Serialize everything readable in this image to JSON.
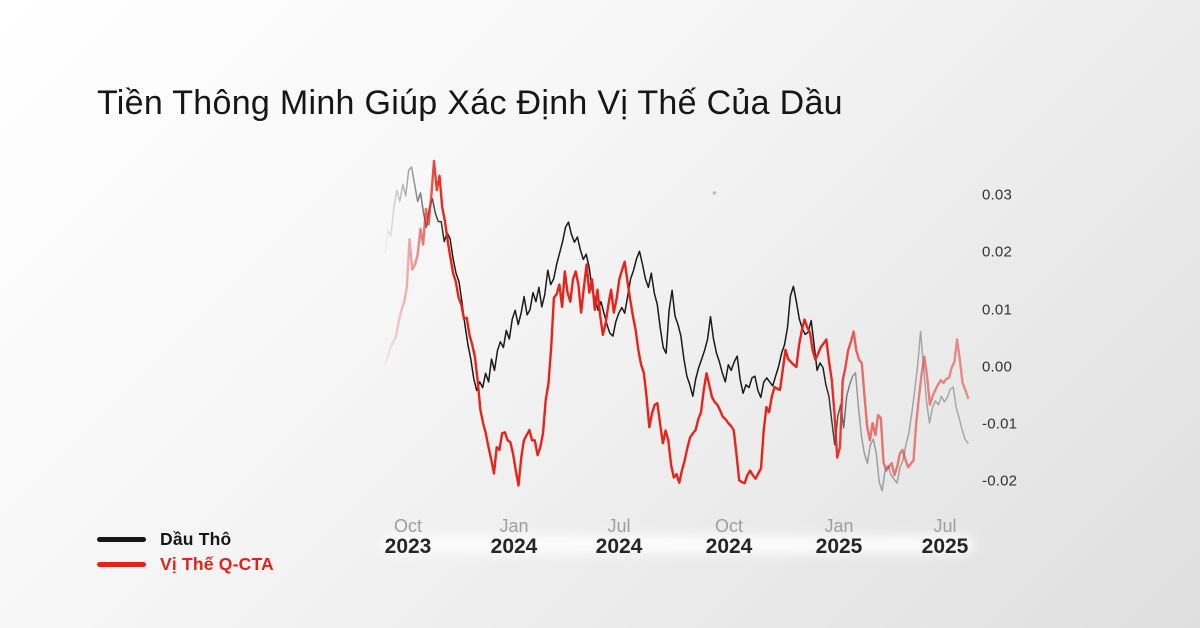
{
  "title": "Tiền Thông Minh Giúp Xác Định Vị Thế Của Dầu",
  "legend": {
    "items": [
      {
        "label": "Dầu Thô",
        "color": "#161616"
      },
      {
        "label": "Vị Thế Q-CTA",
        "color": "#e2231a"
      }
    ]
  },
  "chart_data": {
    "type": "line",
    "title": "Tiền Thông Minh Giúp Xác Định Vị Thế Của Dầu",
    "xlabel": "",
    "ylabel": "",
    "grid": false,
    "legend_position": "bottom-left",
    "y_axis": {
      "side": "right",
      "range": [
        -0.025,
        0.037
      ],
      "ticks": [
        {
          "label": "0.03",
          "value": 0.03
        },
        {
          "label": "0.02",
          "value": 0.02
        },
        {
          "label": "0.01",
          "value": 0.01
        },
        {
          "label": "0.00",
          "value": 0.0
        },
        {
          "label": "-0.01",
          "value": -0.01
        },
        {
          "label": "-0.02",
          "value": -0.02
        }
      ]
    },
    "x_axis": {
      "ticks": [
        {
          "month": "Oct",
          "year": "2023",
          "t": 0.039
        },
        {
          "month": "Jan",
          "year": "2024",
          "t": 0.221
        },
        {
          "month": "Jul",
          "year": "2024",
          "t": 0.401
        },
        {
          "month": "Oct",
          "year": "2024",
          "t": 0.59
        },
        {
          "month": "Jan",
          "year": "2025",
          "t": 0.779
        },
        {
          "month": "Jul",
          "year": "2025",
          "t": 0.961
        }
      ]
    },
    "annotation_dot": {
      "t": 0.565,
      "value": 0.0295
    },
    "series": [
      {
        "name": "Dầu Thô",
        "color": "#1a1a1a",
        "width": 1.5,
        "values": [
          0.019,
          0.023,
          0.022,
          0.027,
          0.03,
          0.028,
          0.031,
          0.029,
          0.0335,
          0.034,
          0.031,
          0.028,
          0.0295,
          0.026,
          0.0235,
          0.027,
          0.0285,
          0.026,
          0.0245,
          0.0245,
          0.021,
          0.0225,
          0.0215,
          0.018,
          0.0155,
          0.014,
          0.0105,
          0.0065,
          0.003,
          0.0005,
          -0.003,
          -0.005,
          -0.0035,
          -0.0045,
          -0.002,
          -0.0035,
          0.0005,
          -0.0015,
          0.002,
          0.0035,
          0.0025,
          0.0055,
          0.004,
          0.0075,
          0.009,
          0.0065,
          0.0085,
          0.0114,
          0.0082,
          0.0091,
          0.0121,
          0.0105,
          0.013,
          0.0096,
          0.0118,
          0.016,
          0.0135,
          0.0145,
          0.017,
          0.019,
          0.021,
          0.0235,
          0.0244,
          0.0223,
          0.0209,
          0.0218,
          0.0196,
          0.0179,
          0.0188,
          0.0165,
          0.0125,
          0.011,
          0.009,
          0.0105,
          0.0085,
          0.0065,
          0.005,
          0.0045,
          0.007,
          0.0085,
          0.0095,
          0.0085,
          0.0115,
          0.0145,
          0.016,
          0.018,
          0.0193,
          0.017,
          0.0145,
          0.013,
          0.0155,
          0.012,
          0.01,
          0.006,
          0.0025,
          0.0015,
          0.009,
          0.0125,
          0.008,
          0.0065,
          0.0045,
          0.0005,
          -0.0025,
          -0.004,
          -0.006,
          -0.003,
          -0.001,
          0.0005,
          0.002,
          0.004,
          0.0079,
          0.004,
          0.0015,
          0.0,
          -0.002,
          -0.0035,
          -0.0005,
          -0.0015,
          0.0,
          0.001,
          -0.003,
          -0.0055,
          -0.004,
          -0.0045,
          -0.0028,
          -0.0025,
          -0.005,
          -0.0062,
          -0.0035,
          -0.0028,
          -0.0035,
          -0.0042,
          -0.0025,
          -0.0008,
          0.0015,
          0.003,
          0.006,
          0.0115,
          0.0132,
          0.0105,
          0.0075,
          0.0058,
          0.0048,
          0.0052,
          0.0072,
          0.003,
          -0.0015,
          -0.0002,
          -0.001,
          -0.004,
          -0.006,
          -0.0105,
          -0.0145,
          -0.0095,
          -0.0075,
          -0.0115,
          -0.006,
          -0.004,
          -0.0025,
          -0.0019,
          -0.008,
          -0.013,
          -0.016,
          -0.0177,
          -0.0145,
          -0.0135,
          -0.016,
          -0.021,
          -0.0225,
          -0.019,
          -0.0181,
          -0.0198,
          -0.0205,
          -0.0212,
          -0.0185,
          -0.0172,
          -0.0145,
          -0.0125,
          -0.009,
          -0.005,
          -0.0005,
          0.0053,
          -0.001,
          -0.007,
          -0.0107,
          -0.008,
          -0.0068,
          -0.0075,
          -0.006,
          -0.007,
          -0.0062,
          -0.0048,
          -0.0044,
          -0.008,
          -0.0098,
          -0.0118,
          -0.0135,
          -0.0142
        ]
      },
      {
        "name": "Vị Thế Q-CTA",
        "color": "#e8231a",
        "width": 2.4,
        "values": [
          -0.0005,
          0.001,
          0.0025,
          0.0035,
          0.0044,
          0.007,
          0.009,
          0.0104,
          0.013,
          0.0214,
          0.0161,
          0.017,
          0.0188,
          0.0232,
          0.0205,
          0.0267,
          0.024,
          0.029,
          0.0351,
          0.03,
          0.0325,
          0.027,
          0.0246,
          0.0211,
          0.0182,
          0.0155,
          0.014,
          0.0112,
          0.01,
          0.0075,
          0.0077,
          0.0047,
          0.003,
          0.0009,
          -0.0032,
          -0.0084,
          -0.0107,
          -0.0125,
          -0.0149,
          -0.017,
          -0.0195,
          -0.0149,
          -0.0154,
          -0.0125,
          -0.0123,
          -0.0137,
          -0.014,
          -0.016,
          -0.019,
          -0.0216,
          -0.0168,
          -0.0137,
          -0.0128,
          -0.0119,
          -0.0137,
          -0.0137,
          -0.0163,
          -0.0149,
          -0.0125,
          -0.0067,
          -0.0037,
          0.0026,
          0.0112,
          0.0118,
          0.0135,
          0.0096,
          0.0158,
          0.0121,
          0.0105,
          0.0144,
          0.0158,
          0.0135,
          0.0086,
          0.013,
          0.017,
          0.0121,
          0.0144,
          0.0091,
          0.0126,
          0.008,
          0.0047,
          0.0068,
          0.01,
          0.0126,
          0.0086,
          0.011,
          0.0144,
          0.016,
          0.0175,
          0.014,
          0.0109,
          0.008,
          0.0056,
          0.002,
          -0.0005,
          -0.0019,
          -0.006,
          -0.0114,
          -0.009,
          -0.0075,
          -0.0072,
          -0.011,
          -0.0142,
          -0.012,
          -0.0137,
          -0.018,
          -0.0202,
          -0.0196,
          -0.0211,
          -0.019,
          -0.0172,
          -0.015,
          -0.0132,
          -0.0125,
          -0.0119,
          -0.01,
          -0.0088,
          -0.005,
          -0.002,
          -0.004,
          -0.0061,
          -0.007,
          -0.0075,
          -0.0085,
          -0.0096,
          -0.01,
          -0.0107,
          -0.0112,
          -0.0119,
          -0.016,
          -0.0207,
          -0.021,
          -0.0212,
          -0.0198,
          -0.019,
          -0.0198,
          -0.0204,
          -0.0195,
          -0.0186,
          -0.012,
          -0.0079,
          -0.0088,
          -0.006,
          -0.0044,
          -0.0047,
          -0.0049,
          -0.0015,
          0.0021,
          0.0005,
          0.0,
          -0.0005,
          -0.0009,
          0.003,
          0.0055,
          0.0074,
          0.006,
          0.0051,
          0.002,
          0.0004,
          0.0015,
          0.0026,
          0.0032,
          0.0039,
          0.0,
          -0.0032,
          -0.009,
          -0.0167,
          -0.0149,
          -0.0032,
          -0.001,
          0.002,
          0.0035,
          0.0053,
          0.002,
          0.0004,
          -0.0002,
          -0.006,
          -0.0114,
          -0.0137,
          -0.0107,
          -0.0128,
          -0.0093,
          -0.0098,
          -0.0175,
          -0.019,
          -0.0183,
          -0.0177,
          -0.0198,
          -0.0183,
          -0.016,
          -0.0154,
          -0.017,
          -0.0184,
          -0.0178,
          -0.0172,
          -0.0107,
          -0.0061,
          -0.002,
          0.0009,
          -0.0026,
          -0.0075,
          -0.006,
          -0.0049,
          -0.004,
          -0.0032,
          -0.0037,
          -0.003,
          -0.0028,
          -0.001,
          0.0,
          0.0039,
          0.0004,
          -0.0037,
          -0.0049,
          -0.0063
        ]
      }
    ]
  }
}
